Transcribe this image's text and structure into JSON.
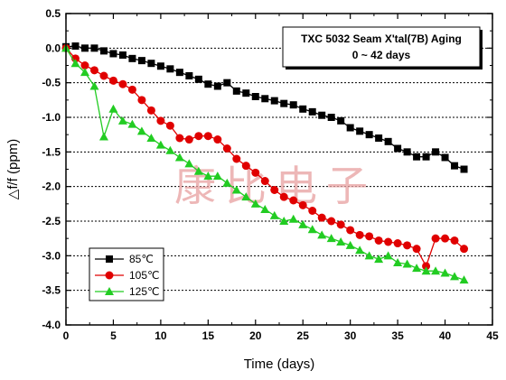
{
  "chart_data": {
    "type": "line",
    "title_lines": [
      "TXC 5032 Seam X'tal(7B) Aging",
      "0 ~ 42 days"
    ],
    "xlabel": "Time (days)",
    "ylabel": "△f/f (ppm)",
    "xlim": [
      0,
      45
    ],
    "ylim": [
      -4.0,
      0.5
    ],
    "xticks": [
      0,
      5,
      10,
      15,
      20,
      25,
      30,
      35,
      40,
      45
    ],
    "yticks": [
      0.5,
      0.0,
      -0.5,
      -1.0,
      -1.5,
      -2.0,
      -2.5,
      -3.0,
      -3.5,
      -4.0
    ],
    "xtick_labels": [
      "0",
      "5",
      "10",
      "15",
      "20",
      "25",
      "30",
      "35",
      "40",
      "45"
    ],
    "ytick_labels": [
      "0.5",
      "0.0",
      "-0.5",
      "-1.0",
      "-1.5",
      "-2.0",
      "-2.5",
      "-3.0",
      "-3.5",
      "-4.0"
    ],
    "grid": "horizontal dotted",
    "legend_position": "bottom-left",
    "watermark": "康比电子",
    "series": [
      {
        "name": "85℃",
        "color": "#000000",
        "marker": "square",
        "x": [
          0,
          1,
          2,
          3,
          4,
          5,
          6,
          7,
          8,
          9,
          10,
          11,
          12,
          13,
          14,
          15,
          16,
          17,
          18,
          19,
          20,
          21,
          22,
          23,
          24,
          25,
          26,
          27,
          28,
          29,
          30,
          31,
          32,
          33,
          34,
          35,
          36,
          37,
          38,
          39,
          40,
          41,
          42
        ],
        "y": [
          0.02,
          0.03,
          0.0,
          0.0,
          -0.04,
          -0.08,
          -0.1,
          -0.15,
          -0.18,
          -0.22,
          -0.26,
          -0.3,
          -0.35,
          -0.4,
          -0.45,
          -0.52,
          -0.55,
          -0.5,
          -0.62,
          -0.65,
          -0.7,
          -0.73,
          -0.76,
          -0.8,
          -0.82,
          -0.88,
          -0.92,
          -0.97,
          -1.0,
          -1.05,
          -1.15,
          -1.2,
          -1.25,
          -1.3,
          -1.35,
          -1.45,
          -1.5,
          -1.57,
          -1.57,
          -1.5,
          -1.58,
          -1.7,
          -1.75
        ]
      },
      {
        "name": "105℃",
        "color": "#e00000",
        "marker": "circle",
        "x": [
          0,
          1,
          2,
          3,
          4,
          5,
          6,
          7,
          8,
          9,
          10,
          11,
          12,
          13,
          14,
          15,
          16,
          17,
          18,
          19,
          20,
          21,
          22,
          23,
          24,
          25,
          26,
          27,
          28,
          29,
          30,
          31,
          32,
          33,
          34,
          35,
          36,
          37,
          38,
          39,
          40,
          41,
          42
        ],
        "y": [
          0.0,
          -0.15,
          -0.25,
          -0.32,
          -0.4,
          -0.47,
          -0.52,
          -0.6,
          -0.75,
          -0.9,
          -1.05,
          -1.12,
          -1.3,
          -1.32,
          -1.27,
          -1.27,
          -1.32,
          -1.45,
          -1.6,
          -1.7,
          -1.8,
          -1.92,
          -2.05,
          -2.15,
          -2.2,
          -2.27,
          -2.35,
          -2.45,
          -2.5,
          -2.55,
          -2.63,
          -2.7,
          -2.72,
          -2.78,
          -2.8,
          -2.82,
          -2.85,
          -2.9,
          -3.15,
          -2.75,
          -2.75,
          -2.78,
          -2.9
        ]
      },
      {
        "name": "125℃",
        "color": "#22cc22",
        "marker": "triangle",
        "x": [
          0,
          1,
          2,
          3,
          4,
          5,
          6,
          7,
          8,
          9,
          10,
          11,
          12,
          13,
          14,
          15,
          16,
          17,
          18,
          19,
          20,
          21,
          22,
          23,
          24,
          25,
          26,
          27,
          28,
          29,
          30,
          31,
          32,
          33,
          34,
          35,
          36,
          37,
          38,
          39,
          40,
          41,
          42
        ],
        "y": [
          0.0,
          -0.22,
          -0.35,
          -0.55,
          -1.28,
          -0.88,
          -1.05,
          -1.1,
          -1.2,
          -1.3,
          -1.4,
          -1.48,
          -1.58,
          -1.67,
          -1.78,
          -1.85,
          -1.85,
          -1.95,
          -2.05,
          -2.15,
          -2.25,
          -2.33,
          -2.42,
          -2.5,
          -2.47,
          -2.55,
          -2.62,
          -2.7,
          -2.75,
          -2.8,
          -2.85,
          -2.92,
          -3.0,
          -3.05,
          -3.0,
          -3.1,
          -3.12,
          -3.18,
          -3.22,
          -3.22,
          -3.25,
          -3.3,
          -3.35
        ]
      }
    ]
  }
}
